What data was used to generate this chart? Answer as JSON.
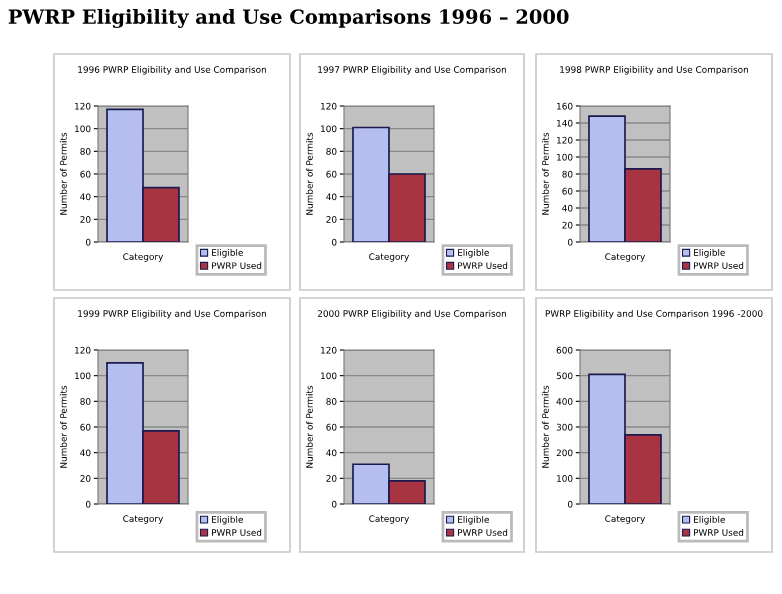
{
  "chart_data": [
    {
      "type": "bar",
      "title": "1996 PWRP Eligibility and Use Comparison",
      "annotations": [
        "PWRP Eligibility and Use Comparisons 1996 – 2000"
      ],
      "ylabel": "Number of Permits",
      "categories": [
        "Category"
      ],
      "ylim": [
        0,
        120
      ],
      "yticks": [
        0,
        20,
        40,
        60,
        80,
        100,
        120
      ],
      "grid": "y",
      "legend": "bottom right",
      "series": [
        {
          "name": "Eligible",
          "color": "#b4bff0",
          "values": [
            117
          ]
        },
        {
          "name": "PWRP Used",
          "color": "#a83442",
          "values": [
            48
          ]
        }
      ]
    },
    {
      "type": "bar",
      "title": "1997 PWRP Eligibility and Use Comparison",
      "ylabel": "Number of Permits",
      "categories": [
        "Category"
      ],
      "ylim": [
        0,
        120
      ],
      "yticks": [
        0,
        20,
        40,
        60,
        80,
        100,
        120
      ],
      "grid": "y",
      "legend": "bottom right",
      "series": [
        {
          "name": "Eligible",
          "color": "#b4bff0",
          "values": [
            101
          ]
        },
        {
          "name": "PWRP Used",
          "color": "#a83442",
          "values": [
            60
          ]
        }
      ]
    },
    {
      "type": "bar",
      "title": "1998 PWRP Eligibility and Use Comparison",
      "ylabel": "Number of Permits",
      "categories": [
        "Category"
      ],
      "ylim": [
        0,
        160
      ],
      "yticks": [
        0,
        20,
        40,
        60,
        80,
        100,
        120,
        140,
        160
      ],
      "grid": "y",
      "legend": "bottom right",
      "series": [
        {
          "name": "Eligible",
          "color": "#b4bff0",
          "values": [
            148
          ]
        },
        {
          "name": "PWRP Used",
          "color": "#a83442",
          "values": [
            86
          ]
        }
      ]
    },
    {
      "type": "bar",
      "title": "1999 PWRP Eligibility and Use Comparison",
      "ylabel": "Number of Permits",
      "categories": [
        "Category"
      ],
      "ylim": [
        0,
        120
      ],
      "yticks": [
        0,
        20,
        40,
        60,
        80,
        100,
        120
      ],
      "grid": "y",
      "legend": "bottom right",
      "series": [
        {
          "name": "Eligible",
          "color": "#b4bff0",
          "values": [
            110
          ]
        },
        {
          "name": "PWRP Used",
          "color": "#a83442",
          "values": [
            57
          ]
        }
      ]
    },
    {
      "type": "bar",
      "title": "2000 PWRP Eligibility and Use Comparison",
      "ylabel": "Number of Permits",
      "categories": [
        "Category"
      ],
      "ylim": [
        0,
        120
      ],
      "yticks": [
        0,
        20,
        40,
        60,
        80,
        100,
        120
      ],
      "grid": "y",
      "legend": "bottom right",
      "series": [
        {
          "name": "Eligible",
          "color": "#b4bff0",
          "values": [
            31
          ]
        },
        {
          "name": "PWRP Used",
          "color": "#a83442",
          "values": [
            18
          ]
        }
      ]
    },
    {
      "type": "bar",
      "title": "PWRP Eligibility and Use Comparison 1996 -2000",
      "ylabel": "Number of Permits",
      "categories": [
        "Category"
      ],
      "ylim": [
        0,
        600
      ],
      "yticks": [
        0,
        100,
        200,
        300,
        400,
        500,
        600
      ],
      "grid": "y",
      "legend": "bottom right",
      "series": [
        {
          "name": "Eligible",
          "color": "#b4bff0",
          "values": [
            505
          ]
        },
        {
          "name": "PWRP Used",
          "color": "#a83442",
          "values": [
            269
          ]
        }
      ]
    }
  ]
}
